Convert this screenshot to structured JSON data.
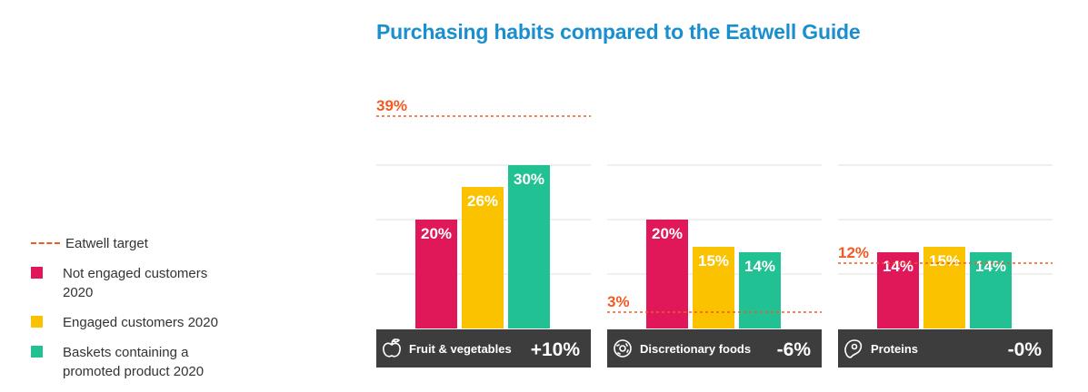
{
  "title": "Purchasing habits compared to the Eatwell Guide",
  "legend": {
    "items": [
      {
        "label": "Eatwell target",
        "kind": "dashed",
        "color": "#f15a24"
      },
      {
        "label": "Not engaged customers 2020",
        "kind": "square",
        "color": "#e0185a"
      },
      {
        "label": "Engaged customers 2020",
        "kind": "square",
        "color": "#fbc200"
      },
      {
        "label": "Baskets containing a promoted product 2020",
        "kind": "square",
        "color": "#21c194"
      }
    ]
  },
  "colors": {
    "series": [
      "#e0185a",
      "#fbc200",
      "#21c194"
    ],
    "target": "#f15a24",
    "panel_footer": "#3d3d3d",
    "gridline": "#e2e2e2"
  },
  "chart_data": {
    "type": "bar",
    "title": "Purchasing habits compared to the Eatwell Guide",
    "series": [
      {
        "name": "Not engaged customers 2020",
        "color": "#e0185a"
      },
      {
        "name": "Engaged customers 2020",
        "color": "#fbc200"
      },
      {
        "name": "Baskets containing a promoted product 2020",
        "color": "#21c194"
      }
    ],
    "panels": [
      {
        "category": "Fruit & vegetables",
        "icon": "apple-icon",
        "values": [
          20,
          26,
          30
        ],
        "value_labels": [
          "20%",
          "26%",
          "30%"
        ],
        "target": 39,
        "target_label": "39%",
        "difference_label": "+10%"
      },
      {
        "category": "Discretionary foods",
        "icon": "donut-icon",
        "values": [
          20,
          15,
          14
        ],
        "value_labels": [
          "20%",
          "15%",
          "14%"
        ],
        "target": 3,
        "target_label": "3%",
        "difference_label": "-6%"
      },
      {
        "category": "Proteins",
        "icon": "steak-icon",
        "values": [
          14,
          15,
          14
        ],
        "value_labels": [
          "14%",
          "15%",
          "14%"
        ],
        "target": 12,
        "target_label": "12%",
        "difference_label": "-0%"
      }
    ],
    "ylim": [
      0,
      40
    ],
    "grid": true,
    "legend_position": "left"
  }
}
